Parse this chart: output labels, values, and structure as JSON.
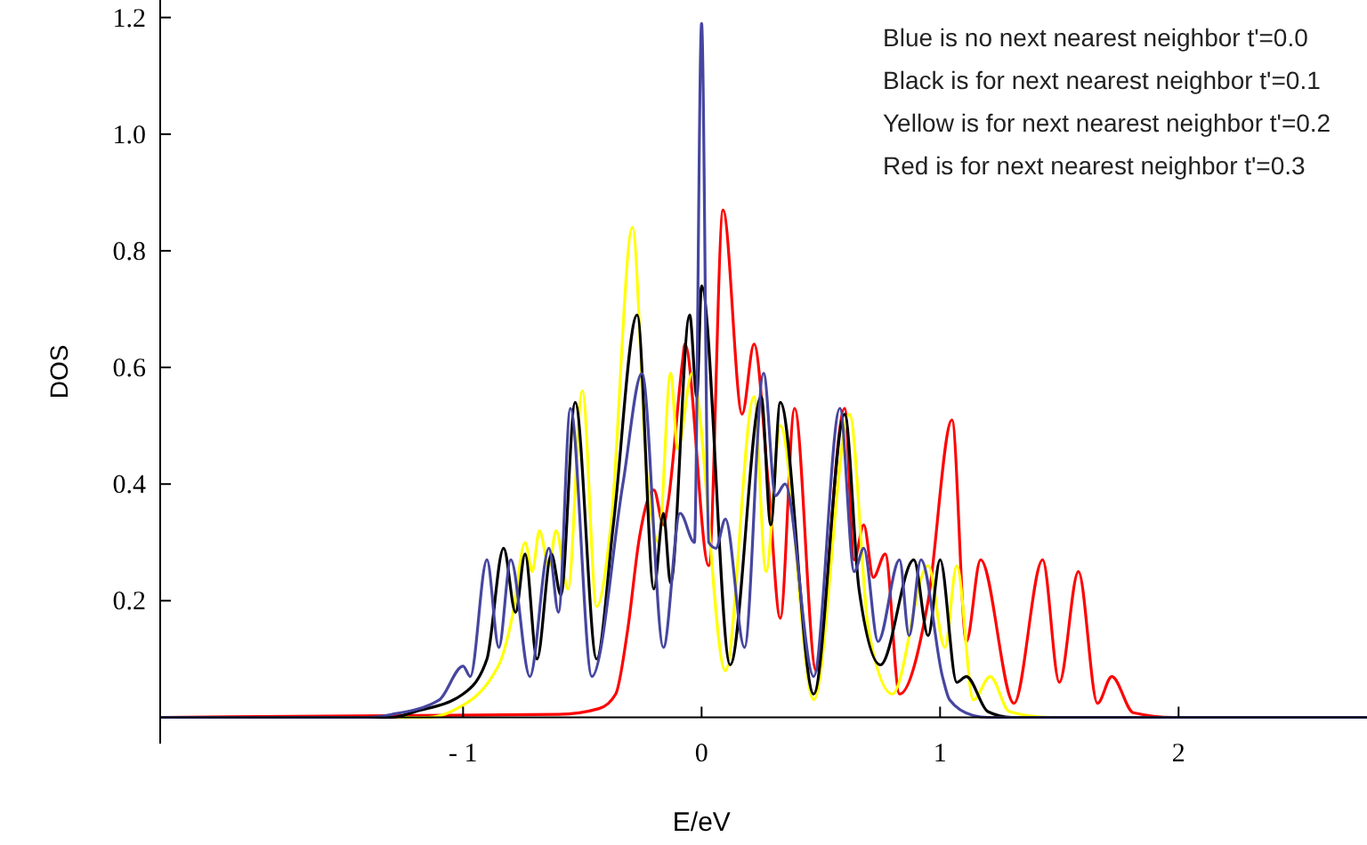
{
  "chart_data": {
    "type": "line",
    "xlabel": "E/eV",
    "ylabel": "DOS",
    "xlim": [
      -2.27,
      2.79
    ],
    "ylim": [
      -0.045,
      1.23
    ],
    "xticks": [
      {
        "value": -1,
        "label": "- 1"
      },
      0,
      1,
      2
    ],
    "yticks": [
      0.2,
      0.4,
      0.6,
      0.8,
      {
        "value": 1,
        "label": "1.0"
      },
      1.2
    ],
    "grid": false,
    "marker": "none",
    "line_style": "solid",
    "annotations": [
      "Blue is no next nearest neighbor t'=0.0",
      "Black is for next nearest neighbor t'=0.1",
      "Yellow is for next nearest neighbor t'=0.2",
      "Red is for next nearest neighbor t'=0.3"
    ],
    "series": [
      {
        "color": "#ff0000",
        "x": [
          -2.27,
          -0.6,
          -0.43,
          -0.36,
          -0.31,
          -0.26,
          -0.2,
          -0.16,
          -0.14,
          -0.08,
          -0.07,
          0.03,
          0.09,
          0.17,
          0.22,
          0.28,
          0.33,
          0.39,
          0.48,
          0.6,
          0.64,
          0.68,
          0.72,
          0.77,
          0.83,
          0.95,
          1.05,
          1.11,
          1.17,
          1.31,
          1.43,
          1.5,
          1.58,
          1.66,
          1.72,
          1.81,
          1.98,
          2.79
        ],
        "values": [
          0,
          0.005,
          0.015,
          0.04,
          0.15,
          0.31,
          0.39,
          0.33,
          0.37,
          0.61,
          0.64,
          0.26,
          0.87,
          0.52,
          0.64,
          0.4,
          0.17,
          0.53,
          0.08,
          0.53,
          0.27,
          0.33,
          0.24,
          0.28,
          0.04,
          0.2,
          0.51,
          0.13,
          0.27,
          0.024,
          0.27,
          0.06,
          0.25,
          0.024,
          0.07,
          0.008,
          0,
          0
        ]
      },
      {
        "color": "#ffff00",
        "x": [
          -2.27,
          -1.15,
          -1.05,
          -0.85,
          -0.79,
          -0.74,
          -0.71,
          -0.68,
          -0.64,
          -0.61,
          -0.56,
          -0.5,
          -0.44,
          -0.38,
          -0.29,
          -0.23,
          -0.18,
          -0.13,
          -0.1,
          -0.04,
          0.1,
          0.22,
          0.27,
          0.33,
          0.47,
          0.62,
          0.7,
          0.8,
          0.95,
          1.02,
          1.07,
          1.14,
          1.21,
          1.29,
          1.46,
          2.79
        ],
        "values": [
          0,
          0,
          0.01,
          0.09,
          0.18,
          0.3,
          0.25,
          0.32,
          0.26,
          0.32,
          0.22,
          0.56,
          0.19,
          0.33,
          0.84,
          0.42,
          0.3,
          0.59,
          0.46,
          0.59,
          0.08,
          0.55,
          0.25,
          0.5,
          0.03,
          0.52,
          0.15,
          0.04,
          0.26,
          0.12,
          0.26,
          0.03,
          0.07,
          0.01,
          0,
          0
        ]
      },
      {
        "color": "#000000",
        "x": [
          -2.27,
          -1.3,
          -1.2,
          -1.0,
          -0.9,
          -0.83,
          -0.78,
          -0.74,
          -0.69,
          -0.63,
          -0.59,
          -0.53,
          -0.44,
          -0.37,
          -0.27,
          -0.2,
          -0.16,
          -0.13,
          -0.05,
          -0.02,
          0.0,
          0.12,
          0.25,
          0.29,
          0.33,
          0.47,
          0.6,
          0.66,
          0.75,
          0.89,
          0.95,
          1.0,
          1.07,
          1.11,
          1.2,
          1.3,
          2.79
        ],
        "values": [
          0,
          0,
          0.01,
          0.04,
          0.1,
          0.29,
          0.18,
          0.28,
          0.1,
          0.28,
          0.21,
          0.54,
          0.1,
          0.33,
          0.69,
          0.22,
          0.35,
          0.23,
          0.69,
          0.55,
          0.74,
          0.09,
          0.55,
          0.33,
          0.54,
          0.04,
          0.52,
          0.22,
          0.09,
          0.27,
          0.14,
          0.27,
          0.06,
          0.07,
          0.01,
          0,
          0
        ]
      },
      {
        "color": "#4646a0",
        "x": [
          -2.27,
          -1.4,
          -1.3,
          -1.1,
          -1.0,
          -0.97,
          -0.9,
          -0.85,
          -0.8,
          -0.72,
          -0.64,
          -0.6,
          -0.55,
          -0.46,
          -0.33,
          -0.25,
          -0.16,
          -0.09,
          -0.03,
          0.0,
          0.03,
          0.06,
          0.1,
          0.18,
          0.26,
          0.31,
          0.35,
          0.47,
          0.58,
          0.64,
          0.68,
          0.74,
          0.83,
          0.87,
          0.92,
          1.01,
          1.04,
          1.14,
          1.2,
          2.79
        ],
        "values": [
          0,
          0,
          0.005,
          0.03,
          0.088,
          0.07,
          0.27,
          0.12,
          0.27,
          0.07,
          0.29,
          0.18,
          0.53,
          0.07,
          0.4,
          0.59,
          0.12,
          0.35,
          0.3,
          1.19,
          0.3,
          0.29,
          0.34,
          0.12,
          0.59,
          0.38,
          0.4,
          0.07,
          0.53,
          0.25,
          0.29,
          0.13,
          0.27,
          0.14,
          0.27,
          0.07,
          0.03,
          0.003,
          0,
          0
        ]
      }
    ]
  }
}
